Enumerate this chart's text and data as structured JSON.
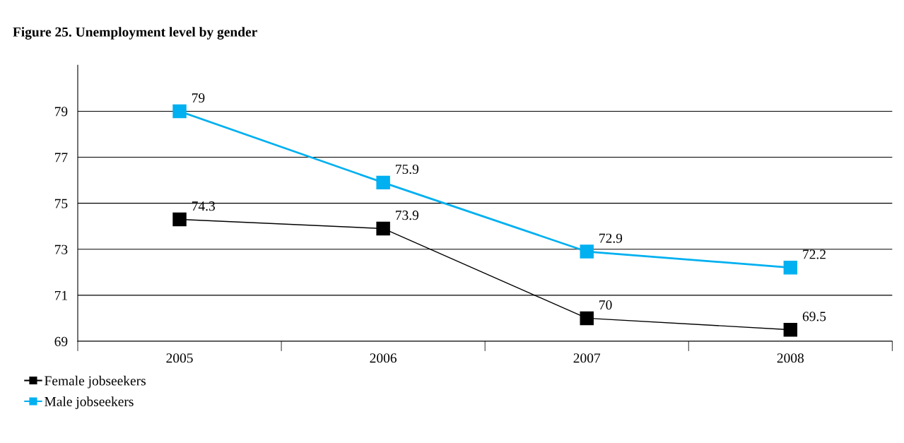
{
  "chart_data": {
    "type": "line",
    "title": "Figure 25. Unemployment level by gender",
    "categories": [
      "2005",
      "2006",
      "2007",
      "2008"
    ],
    "series": [
      {
        "name": "Female jobseekers",
        "color": "#000000",
        "values": [
          74.3,
          73.9,
          70,
          69.5
        ]
      },
      {
        "name": "Male jobseekers",
        "color": "#00b0f0",
        "values": [
          79,
          75.9,
          72.9,
          72.2
        ]
      }
    ],
    "ylim": [
      69,
      81
    ],
    "yticks": [
      69,
      71,
      73,
      75,
      77,
      79
    ],
    "grid": "y",
    "legend": "bottom left",
    "marker": "square",
    "line_style": "solid",
    "data_labels": true
  }
}
